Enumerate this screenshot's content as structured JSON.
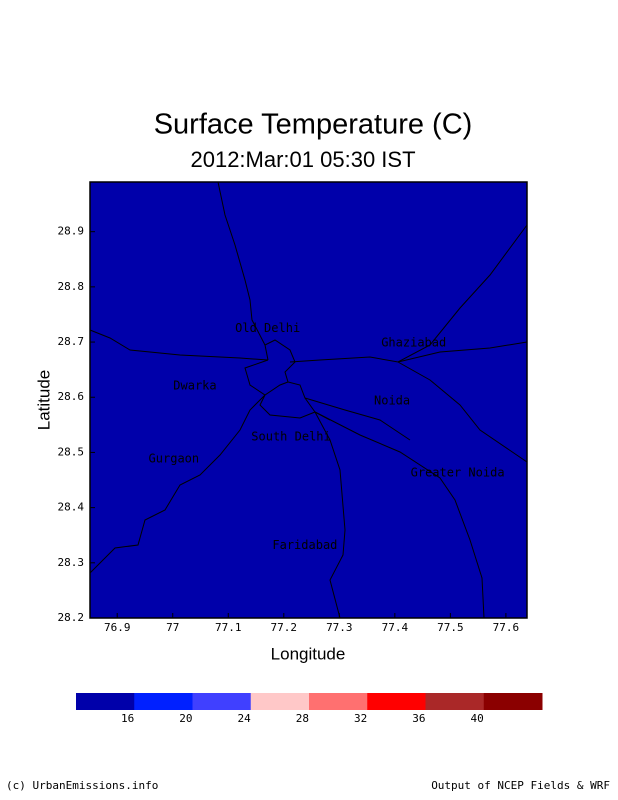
{
  "chart_data": {
    "type": "map",
    "title": "Surface Temperature (C)",
    "subtitle": "2012:Mar:01 05:30 IST",
    "x_label": "Longitude",
    "y_label": "Latitude",
    "xlim": [
      76.851,
      77.638
    ],
    "ylim": [
      28.2,
      28.99
    ],
    "xticks": [
      76.9,
      77,
      77.1,
      77.2,
      77.3,
      77.4,
      77.5,
      77.6
    ],
    "yticks": [
      28.2,
      28.3,
      28.4,
      28.5,
      28.6,
      28.7,
      28.8,
      28.9
    ],
    "field_color": "#0000aa",
    "places": [
      {
        "name": "Old Delhi",
        "lon": 77.171,
        "lat": 28.725
      },
      {
        "name": "Ghaziabad",
        "lon": 77.434,
        "lat": 28.698
      },
      {
        "name": "Dwarka",
        "lon": 77.04,
        "lat": 28.62
      },
      {
        "name": "Noida",
        "lon": 77.395,
        "lat": 28.593
      },
      {
        "name": "South Delhi",
        "lon": 77.213,
        "lat": 28.528
      },
      {
        "name": "Gurgaon",
        "lon": 77.002,
        "lat": 28.488
      },
      {
        "name": "Greater Noida",
        "lon": 77.513,
        "lat": 28.463
      },
      {
        "name": "Faridabad",
        "lon": 77.238,
        "lat": 28.331
      }
    ],
    "colorbar": {
      "colors": [
        "#0000aa",
        "#0020ff",
        "#4040ff",
        "#ffc8c8",
        "#ff7070",
        "#ff0000",
        "#aa2828",
        "#8b0000"
      ],
      "ticks": [
        16,
        20,
        24,
        28,
        32,
        36,
        40
      ]
    },
    "footer_left": "(c) UrbanEmissions.info",
    "footer_right": "Output of NCEP Fields & WRF"
  }
}
